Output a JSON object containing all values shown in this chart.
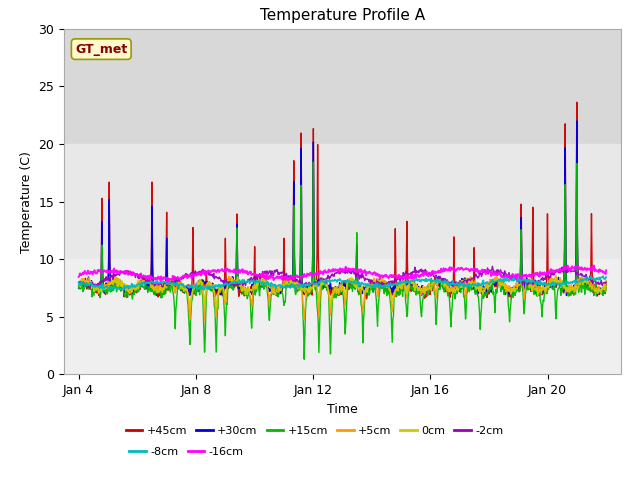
{
  "title": "Temperature Profile A",
  "xlabel": "Time",
  "ylabel": "Temperature (C)",
  "ylim": [
    0,
    30
  ],
  "xlim": [
    3.5,
    22.5
  ],
  "xticks": [
    4,
    8,
    12,
    16,
    20
  ],
  "xticklabels": [
    "Jan 4",
    "Jan 8",
    "Jan 12",
    "Jan 16",
    "Jan 20"
  ],
  "bg_band_top": {
    "ymin": 20,
    "ymax": 30,
    "color": "#d8d8d8"
  },
  "bg_band_mid": {
    "ymin": 10,
    "ymax": 20,
    "color": "#e8e8e8"
  },
  "bg_band_bot": {
    "ymin": 0,
    "ymax": 10,
    "color": "#efefef"
  },
  "ax_facecolor": "#ffffff",
  "fig_facecolor": "#ffffff",
  "gt_met_label": "GT_met",
  "gt_met_box_facecolor": "#fffacd",
  "gt_met_box_edgecolor": "#999900",
  "gt_met_text_color": "#880000",
  "series": [
    {
      "label": "+45cm",
      "color": "#cc0000",
      "lw": 1.0
    },
    {
      "label": "+30cm",
      "color": "#0000dd",
      "lw": 1.0
    },
    {
      "label": "+15cm",
      "color": "#00bb00",
      "lw": 1.0
    },
    {
      "label": "+5cm",
      "color": "#ff9900",
      "lw": 1.0
    },
    {
      "label": "0cm",
      "color": "#cccc00",
      "lw": 1.0
    },
    {
      "label": "-2cm",
      "color": "#9900bb",
      "lw": 1.0
    },
    {
      "label": "-8cm",
      "color": "#00bbbb",
      "lw": 1.2
    },
    {
      "label": "-16cm",
      "color": "#ff00ff",
      "lw": 1.4
    }
  ],
  "seed": 42
}
